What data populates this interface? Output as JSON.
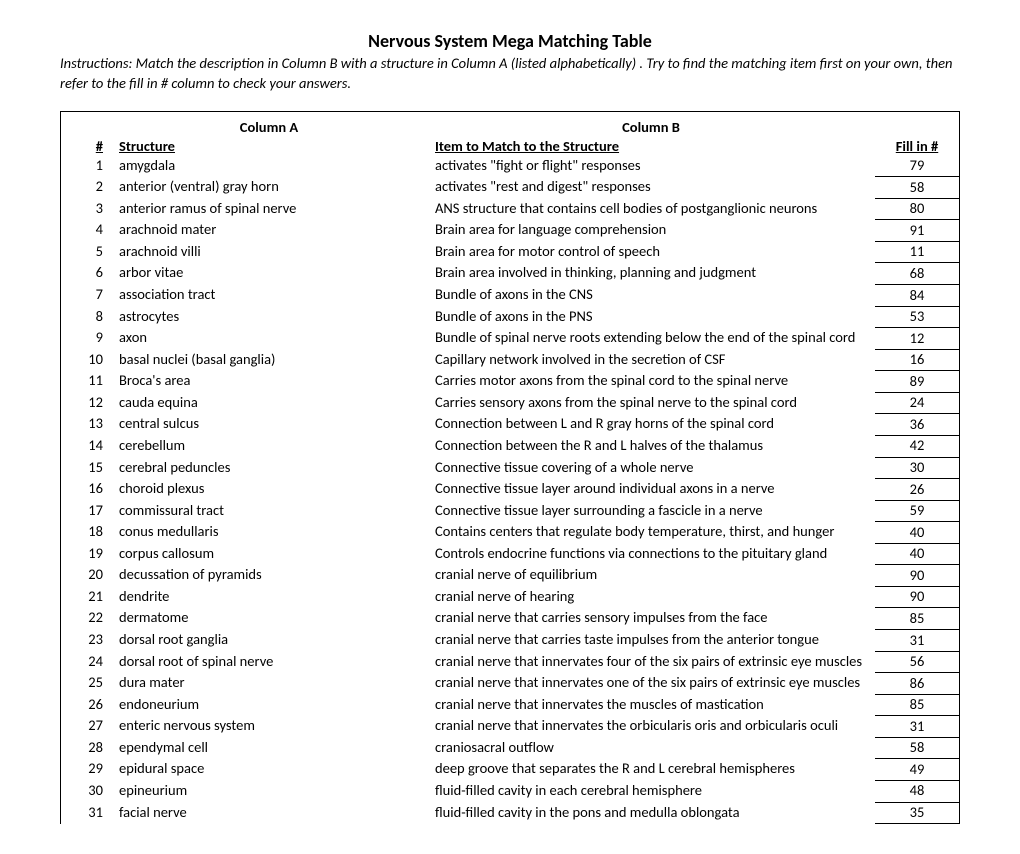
{
  "title": "Nervous System Mega Matching Table",
  "instructions": "Instructions: Match the description in Column B with a structure in Column A (listed alphabetically) . Try to find the matching item  first on your own, then refer to the fill in #  column to check your answers.",
  "headers": {
    "colA": "Column A",
    "colB": "Column B",
    "num": "#",
    "structure": "Structure",
    "item": "Item to Match to the Structure",
    "fill": "Fill in #"
  },
  "rows": [
    {
      "n": "1",
      "a": "amygdala",
      "b": "activates \"fight or flight\" responses",
      "f": "79"
    },
    {
      "n": "2",
      "a": "anterior (ventral) gray horn",
      "b": "activates \"rest and digest\" responses",
      "f": "58"
    },
    {
      "n": "3",
      "a": "anterior ramus of spinal nerve",
      "b": "ANS structure that contains cell bodies of postganglionic neurons",
      "f": "80"
    },
    {
      "n": "4",
      "a": "arachnoid mater",
      "b": "Brain area for language comprehension",
      "f": "91"
    },
    {
      "n": "5",
      "a": "arachnoid villi",
      "b": "Brain area for motor control of speech",
      "f": "11"
    },
    {
      "n": "6",
      "a": "arbor vitae",
      "b": "Brain area involved in thinking, planning and judgment",
      "f": "68"
    },
    {
      "n": "7",
      "a": "association tract",
      "b": "Bundle of axons in the CNS",
      "f": "84"
    },
    {
      "n": "8",
      "a": "astrocytes",
      "b": "Bundle of axons in the PNS",
      "f": "53"
    },
    {
      "n": "9",
      "a": "axon",
      "b": "Bundle of spinal nerve roots extending below the end of the spinal cord",
      "f": "12"
    },
    {
      "n": "10",
      "a": "basal nuclei (basal ganglia)",
      "b": "Capillary network involved in the secretion of CSF",
      "f": "16"
    },
    {
      "n": "11",
      "a": "Broca's area",
      "b": "Carries motor axons from the spinal cord to the spinal nerve",
      "f": "89"
    },
    {
      "n": "12",
      "a": "cauda equina",
      "b": "Carries sensory axons from the spinal nerve to the spinal cord",
      "f": "24"
    },
    {
      "n": "13",
      "a": "central sulcus",
      "b": "Connection between L and R gray horns of the spinal cord",
      "f": "36"
    },
    {
      "n": "14",
      "a": "cerebellum",
      "b": "Connection between the R and L halves of the thalamus",
      "f": "42"
    },
    {
      "n": "15",
      "a": "cerebral peduncles",
      "b": "Connective tissue covering of a whole nerve",
      "f": "30"
    },
    {
      "n": "16",
      "a": "choroid plexus",
      "b": "Connective tissue layer around individual axons in a nerve",
      "f": "26"
    },
    {
      "n": "17",
      "a": "commissural tract",
      "b": "Connective tissue layer surrounding a fascicle in a nerve",
      "f": "59"
    },
    {
      "n": "18",
      "a": "conus medullaris",
      "b": "Contains centers that regulate body temperature, thirst, and hunger",
      "f": "40"
    },
    {
      "n": "19",
      "a": "corpus callosum",
      "b": "Controls endocrine functions via connections to the pituitary gland",
      "f": "40"
    },
    {
      "n": "20",
      "a": "decussation of pyramids",
      "b": "cranial nerve of equilibrium",
      "f": "90"
    },
    {
      "n": "21",
      "a": "dendrite",
      "b": "cranial nerve of hearing",
      "f": "90"
    },
    {
      "n": "22",
      "a": "dermatome",
      "b": "cranial nerve that carries sensory impulses from the face",
      "f": "85"
    },
    {
      "n": "23",
      "a": "dorsal root ganglia",
      "b": "cranial nerve that carries taste impulses from the anterior tongue",
      "f": "31"
    },
    {
      "n": "24",
      "a": "dorsal root of spinal nerve",
      "b": "cranial nerve that innervates four of the six pairs of extrinsic eye muscles",
      "f": "56"
    },
    {
      "n": "25",
      "a": "dura mater",
      "b": "cranial nerve that innervates one of the six pairs of extrinsic eye muscles",
      "f": "86"
    },
    {
      "n": "26",
      "a": "endoneurium",
      "b": "cranial nerve that innervates the muscles of mastication",
      "f": "85"
    },
    {
      "n": "27",
      "a": "enteric nervous system",
      "b": "cranial nerve that innervates the orbicularis oris and orbicularis oculi",
      "f": "31"
    },
    {
      "n": "28",
      "a": "ependymal cell",
      "b": "craniosacral outflow",
      "f": "58"
    },
    {
      "n": "29",
      "a": "epidural space",
      "b": "deep groove that separates the R and L cerebral hemispheres",
      "f": "49"
    },
    {
      "n": "30",
      "a": "epineurium",
      "b": "fluid-filled cavity in each cerebral hemisphere",
      "f": "48"
    },
    {
      "n": "31",
      "a": "facial nerve",
      "b": "fluid-filled cavity in the pons and medulla oblongata",
      "f": "35"
    }
  ]
}
